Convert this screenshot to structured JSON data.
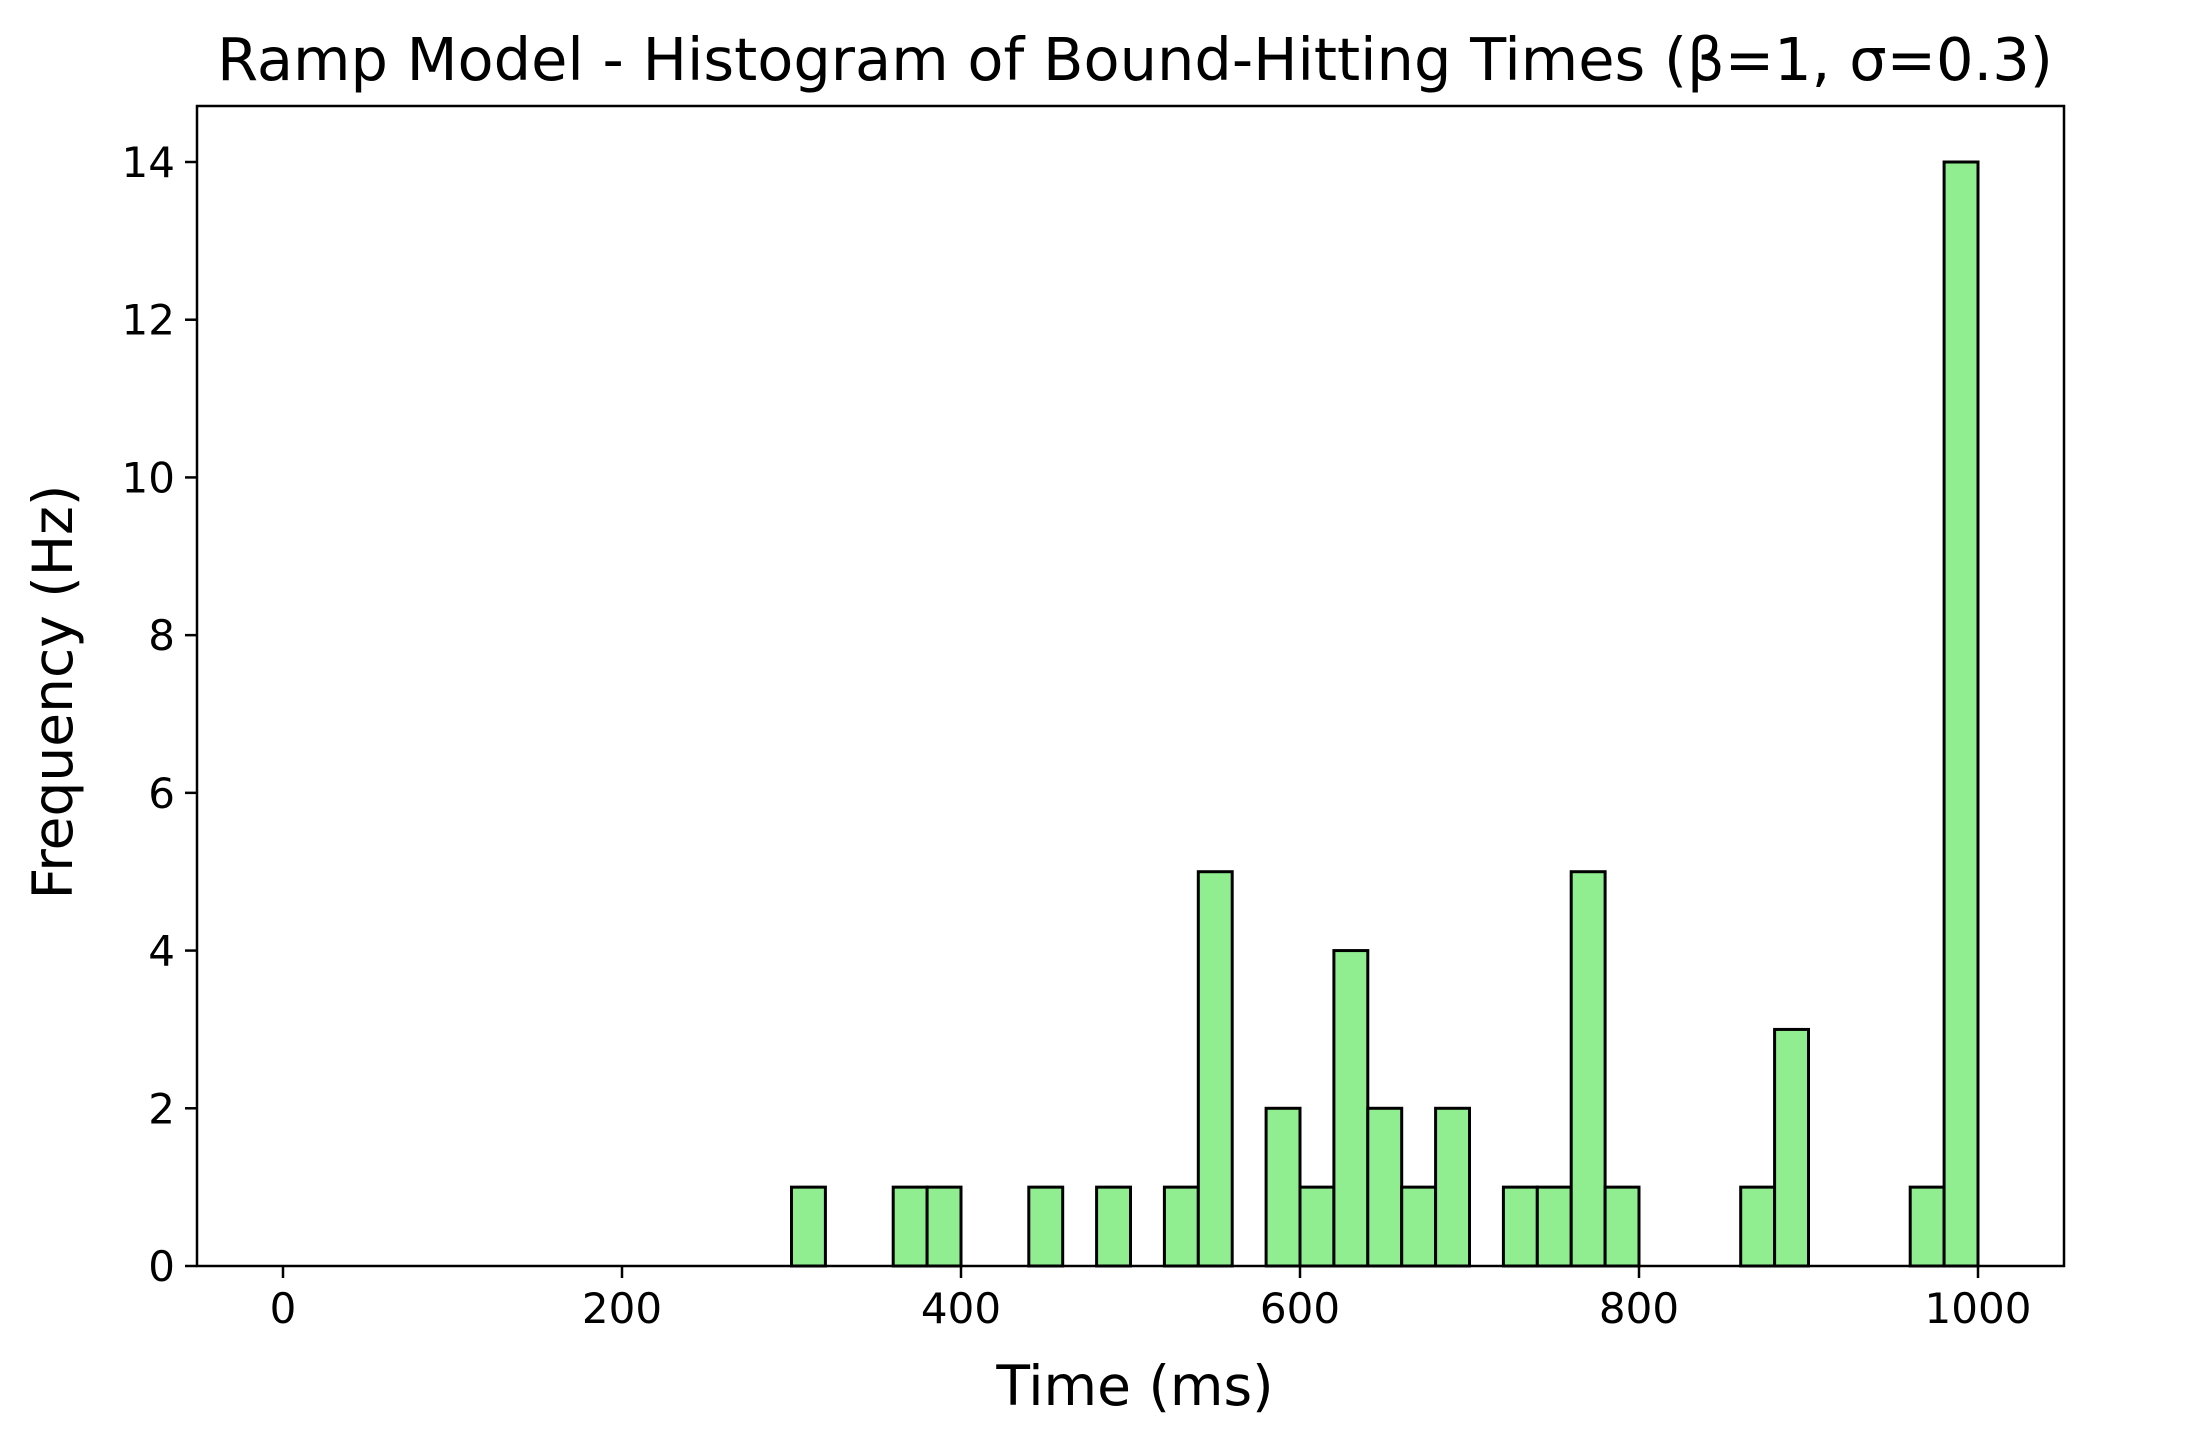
{
  "chart_data": {
    "type": "bar",
    "title": "Ramp Model - Histogram of Bound-Hitting Times (β=1, σ=0.3)",
    "xlabel": "Time (ms)",
    "ylabel": "Frequency (Hz)",
    "xlim": [
      -52,
      1052
    ],
    "ylim": [
      0,
      14.7
    ],
    "xticks": [
      "0",
      "200",
      "400",
      "600",
      "800",
      "1000"
    ],
    "yticks": [
      "0",
      "2",
      "4",
      "6",
      "8",
      "10",
      "12",
      "14"
    ],
    "bin_width": 20,
    "bar_color": "#90ee90",
    "edge_color": "#000000",
    "bins": [
      {
        "start": 0,
        "value": 0
      },
      {
        "start": 20,
        "value": 0
      },
      {
        "start": 40,
        "value": 0
      },
      {
        "start": 60,
        "value": 0
      },
      {
        "start": 80,
        "value": 0
      },
      {
        "start": 100,
        "value": 0
      },
      {
        "start": 120,
        "value": 0
      },
      {
        "start": 140,
        "value": 0
      },
      {
        "start": 160,
        "value": 0
      },
      {
        "start": 180,
        "value": 0
      },
      {
        "start": 200,
        "value": 0
      },
      {
        "start": 220,
        "value": 0
      },
      {
        "start": 240,
        "value": 0
      },
      {
        "start": 260,
        "value": 0
      },
      {
        "start": 280,
        "value": 0
      },
      {
        "start": 300,
        "value": 1
      },
      {
        "start": 320,
        "value": 0
      },
      {
        "start": 340,
        "value": 0
      },
      {
        "start": 360,
        "value": 1
      },
      {
        "start": 380,
        "value": 1
      },
      {
        "start": 400,
        "value": 0
      },
      {
        "start": 420,
        "value": 0
      },
      {
        "start": 440,
        "value": 1
      },
      {
        "start": 460,
        "value": 0
      },
      {
        "start": 480,
        "value": 1
      },
      {
        "start": 500,
        "value": 0
      },
      {
        "start": 520,
        "value": 1
      },
      {
        "start": 540,
        "value": 5
      },
      {
        "start": 560,
        "value": 0
      },
      {
        "start": 580,
        "value": 2
      },
      {
        "start": 600,
        "value": 1
      },
      {
        "start": 620,
        "value": 4
      },
      {
        "start": 640,
        "value": 2
      },
      {
        "start": 660,
        "value": 1
      },
      {
        "start": 680,
        "value": 2
      },
      {
        "start": 700,
        "value": 0
      },
      {
        "start": 720,
        "value": 1
      },
      {
        "start": 740,
        "value": 1
      },
      {
        "start": 760,
        "value": 5
      },
      {
        "start": 780,
        "value": 1
      },
      {
        "start": 800,
        "value": 0
      },
      {
        "start": 820,
        "value": 0
      },
      {
        "start": 840,
        "value": 0
      },
      {
        "start": 860,
        "value": 1
      },
      {
        "start": 880,
        "value": 3
      },
      {
        "start": 900,
        "value": 0
      },
      {
        "start": 920,
        "value": 0
      },
      {
        "start": 940,
        "value": 0
      },
      {
        "start": 960,
        "value": 1
      },
      {
        "start": 980,
        "value": 14
      }
    ]
  }
}
